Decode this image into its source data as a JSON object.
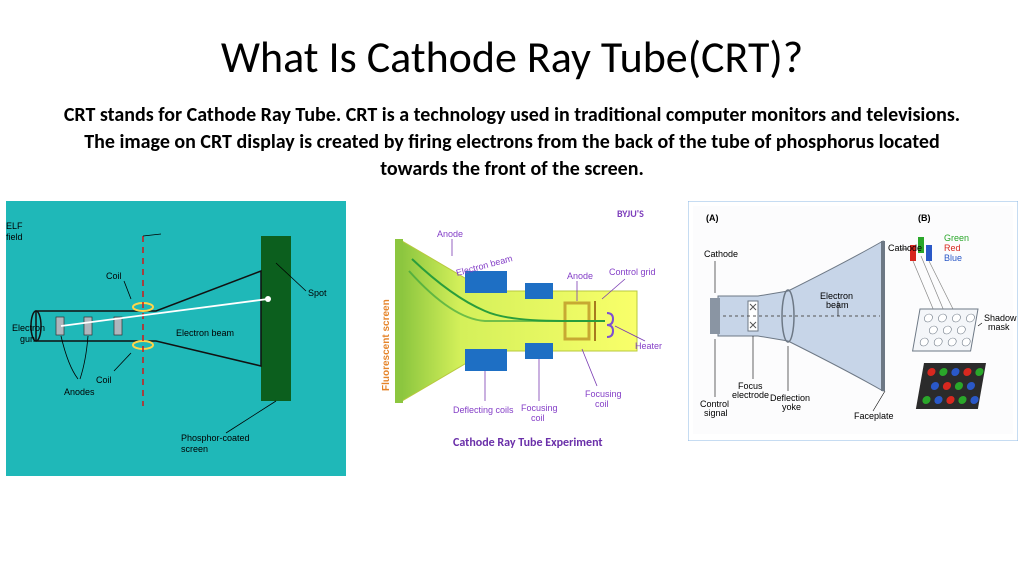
{
  "title": "What Is Cathode Ray Tube(CRT)?",
  "description": "CRT stands for Cathode Ray Tube. CRT is a technology used in traditional computer monitors and televisions. The image on CRT display is created by firing electrons from the back of the tube of phosphorus located towards the front of the screen.",
  "colors": {
    "a_bg": "#1fb8b8",
    "a_screen": "#0c5f1e",
    "a_tube_stroke": "#111",
    "a_beam": "#ffffff",
    "a_coil": "#ffd54a",
    "a_dash": "#d11919",
    "a_label": "#000000",
    "b_border": "#b5b5b5",
    "b_tube_fill_outer": "#f9ff6a",
    "b_tube_fill_mid": "#d4f05a",
    "b_tube_fill_screen": "#8cc63f",
    "b_beam": "#2a9d3c",
    "b_deflect": "#1e6fc4",
    "b_anode": "#c7a932",
    "b_heater": "#7e4fd1",
    "b_label": "#843ec7",
    "b_screen_label_bg": "#e5842a",
    "c_border": "#8db8e6",
    "c_tube_fill": "#c7d5e8",
    "c_gray": "#8a95a3",
    "c_label": "#000000",
    "c_red": "#d7281f",
    "c_green": "#2aa72a",
    "c_blue": "#2a58c7"
  },
  "diag_a": {
    "labels": {
      "elf": "ELF\nfield",
      "coil_top": "Coil",
      "coil_bot": "Coil",
      "egun": "Electron\ngun",
      "anodes": "Anodes",
      "beam": "Electron beam",
      "spot": "Spot",
      "phosphor": "Phosphor-coated\nscreen"
    }
  },
  "diag_b": {
    "brand": "BYJU'S",
    "caption": "Cathode Ray Tube Experiment",
    "labels": {
      "screen": "Fluorescent screen",
      "anode": "Anode",
      "ebeam": "Electron beam",
      "control_grid": "Control grid",
      "anode2": "Anode",
      "heater": "Heater",
      "deflect": "Deflecting coils",
      "focus": "Focusing\ncoil",
      "focus2": "Focusing\ncoil"
    }
  },
  "diag_c": {
    "panel_a_tag": "(A)",
    "panel_b_tag": "(B)",
    "labels": {
      "cathode": "Cathode",
      "control": "Control\nsignal",
      "focus_el": "Focus\nelectrode",
      "deflect_yoke": "Deflection\nyoke",
      "ebeam": "Electron\nbeam",
      "shadow": "Shadow\nmask",
      "faceplate": "Faceplate",
      "cathode2": "Cathode",
      "red": "Red",
      "green": "Green",
      "blue": "Blue"
    }
  }
}
